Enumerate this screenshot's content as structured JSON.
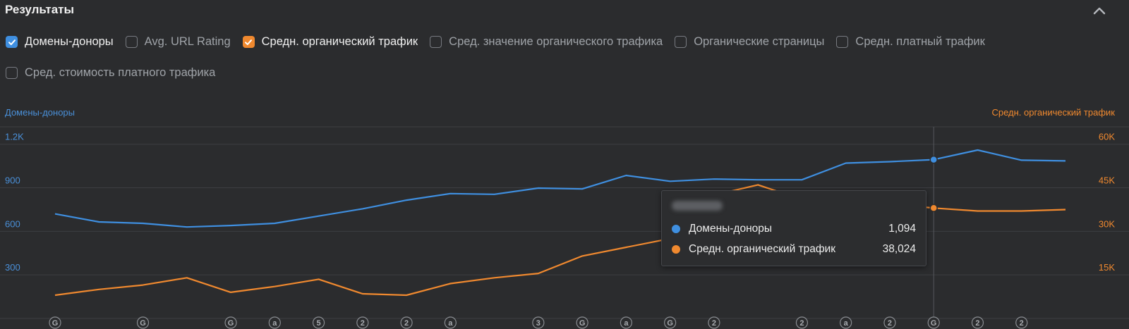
{
  "header": {
    "title": "Результаты"
  },
  "legend": [
    {
      "label": "Домены-доноры",
      "checked": true,
      "color": "#3f8fe0"
    },
    {
      "label": "Avg. URL Rating",
      "checked": false
    },
    {
      "label": "Средн. органический трафик",
      "checked": true,
      "color": "#f0892f"
    },
    {
      "label": "Сред. значение органического трафика",
      "checked": false
    },
    {
      "label": "Органические страницы",
      "checked": false
    },
    {
      "label": "Средн. платный трафик",
      "checked": false
    },
    {
      "label": "Сред. стоимость платного трафика",
      "checked": false
    }
  ],
  "chart_data": {
    "type": "line",
    "left_axis": {
      "label": "Домены-доноры",
      "ticks": [
        "300",
        "600",
        "900",
        "1.2K"
      ],
      "ylim": [
        0,
        1320
      ]
    },
    "right_axis": {
      "label": "Средн. органический трафик",
      "ticks": [
        "15K",
        "30K",
        "45K",
        "60K"
      ],
      "ylim": [
        0,
        66000
      ]
    },
    "series": [
      {
        "name": "Домены-доноры",
        "axis": "left",
        "color": "#3f8fe0",
        "values": [
          720,
          665,
          655,
          630,
          640,
          655,
          705,
          755,
          815,
          860,
          855,
          898,
          892,
          985,
          945,
          960,
          955,
          955,
          1070,
          1080,
          1094,
          1160,
          1090,
          1085
        ]
      },
      {
        "name": "Средн. органический трафик",
        "axis": "right",
        "color": "#f0892f",
        "values": [
          8000,
          10000,
          11500,
          14000,
          9000,
          11000,
          13500,
          8500,
          8000,
          12000,
          14000,
          15500,
          21500,
          24500,
          27500,
          42500,
          46000,
          41000,
          39000,
          39500,
          38024,
          37000,
          37000,
          37500
        ]
      }
    ],
    "markers": [
      "G",
      "",
      "G",
      "",
      "G",
      "a",
      "5",
      "2",
      "2",
      "a",
      "",
      "3",
      "G",
      "a",
      "G",
      "2",
      "",
      "2",
      "a",
      "2",
      "G",
      "2",
      "2",
      ""
    ],
    "highlight_index": 20,
    "grid": true
  },
  "tooltip": {
    "rows": [
      {
        "name": "Домены-доноры",
        "value": "1,094",
        "color": "#3f8fe0"
      },
      {
        "name": "Средн. органический трафик",
        "value": "38,024",
        "color": "#f0892f"
      }
    ]
  }
}
